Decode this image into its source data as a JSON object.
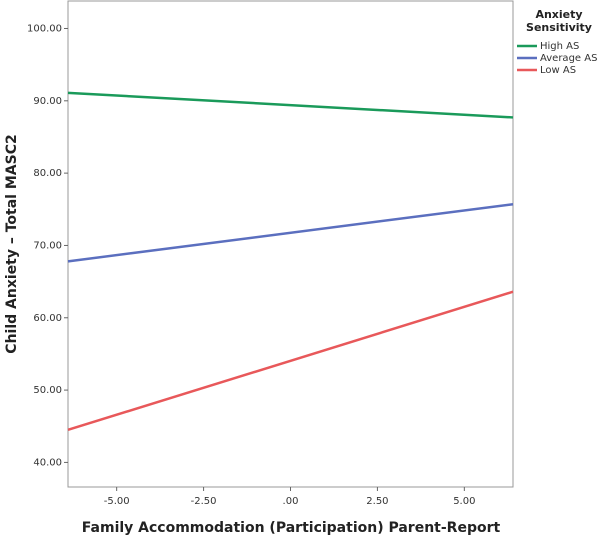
{
  "chart_data": {
    "type": "line",
    "x_label": "Family Accommodation (Participation) Parent-Report",
    "y_label": "Child Anxiety – Total MASC2",
    "legend_title": "Anxiety Sensitivity",
    "legend_position": "right",
    "x": [
      -6.4,
      6.4
    ],
    "series": [
      {
        "name": "High AS",
        "color": "#1a9a5a",
        "values": [
          91.1,
          87.7
        ]
      },
      {
        "name": "Average AS",
        "color": "#5b6fbf",
        "values": [
          67.8,
          75.7
        ]
      },
      {
        "name": "Low AS",
        "color": "#e8585a",
        "values": [
          44.5,
          63.6
        ]
      }
    ],
    "xlim": [
      -6.4,
      6.4
    ],
    "ylim": [
      36.6,
      103.8
    ],
    "xticks": [
      {
        "value": -5,
        "label": "-5.00"
      },
      {
        "value": -2.5,
        "label": "-2.50"
      },
      {
        "value": 0,
        "label": ".00"
      },
      {
        "value": 2.5,
        "label": "2.50"
      },
      {
        "value": 5,
        "label": "5.00"
      }
    ],
    "yticks": [
      {
        "value": 40,
        "label": "40.00"
      },
      {
        "value": 50,
        "label": "50.00"
      },
      {
        "value": 60,
        "label": "60.00"
      },
      {
        "value": 70,
        "label": "70.00"
      },
      {
        "value": 80,
        "label": "80.00"
      },
      {
        "value": 90,
        "label": "90.00"
      },
      {
        "value": 100,
        "label": "100.00"
      }
    ],
    "grid": false
  }
}
